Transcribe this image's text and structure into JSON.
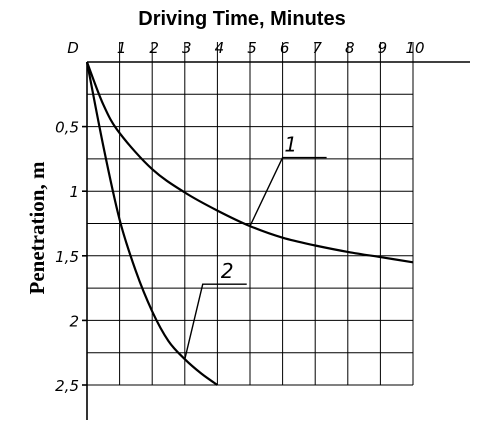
{
  "chart_data": {
    "type": "line",
    "title": "Driving Time, Minutes",
    "xlabel": "Driving Time, Minutes",
    "ylabel": "Penetration, m",
    "xlim": [
      0,
      10
    ],
    "ylim": [
      2.5,
      0
    ],
    "y_inverted": true,
    "x_axis_position": "top",
    "grid": true,
    "x_ticks": [
      {
        "value": 0,
        "label": "D"
      },
      {
        "value": 1,
        "label": "1"
      },
      {
        "value": 2,
        "label": "2"
      },
      {
        "value": 3,
        "label": "3"
      },
      {
        "value": 4,
        "label": "4"
      },
      {
        "value": 5,
        "label": "5"
      },
      {
        "value": 6,
        "label": "6"
      },
      {
        "value": 7,
        "label": "7"
      },
      {
        "value": 8,
        "label": "8"
      },
      {
        "value": 9,
        "label": "9"
      },
      {
        "value": 10,
        "label": "10"
      }
    ],
    "y_ticks": [
      {
        "value": 0.5,
        "label": "0,5"
      },
      {
        "value": 1,
        "label": "1"
      },
      {
        "value": 1.5,
        "label": "1,5"
      },
      {
        "value": 2,
        "label": "2"
      },
      {
        "value": 2.5,
        "label": "2,5"
      }
    ],
    "series": [
      {
        "name": "1",
        "x": [
          0,
          0.5,
          1,
          2,
          3,
          4,
          5,
          6,
          7,
          8,
          9,
          10
        ],
        "y": [
          0,
          0.33,
          0.55,
          0.83,
          1.01,
          1.15,
          1.27,
          1.36,
          1.42,
          1.47,
          1.51,
          1.55
        ]
      },
      {
        "name": "2",
        "x": [
          0,
          0.5,
          1,
          1.5,
          2,
          2.5,
          3,
          3.5,
          4
        ],
        "y": [
          0,
          0.65,
          1.22,
          1.62,
          1.93,
          2.16,
          2.3,
          2.41,
          2.5
        ]
      }
    ]
  }
}
